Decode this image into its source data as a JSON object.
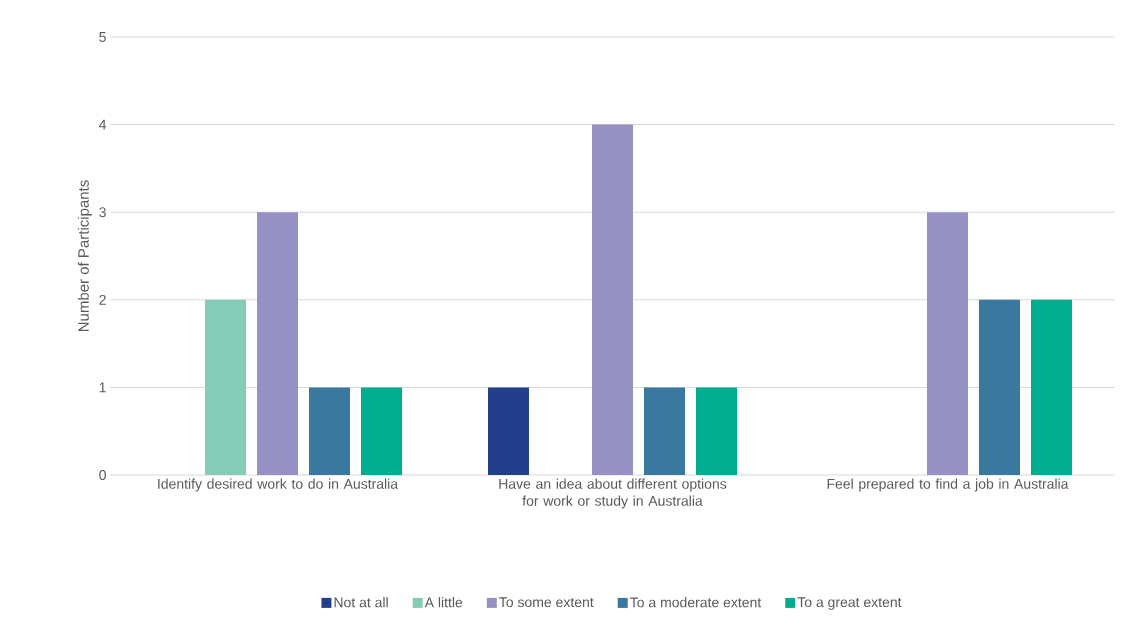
{
  "chart_data": {
    "type": "bar",
    "ylabel": "Number of Participants",
    "categories": [
      "Identify desired work to do in Australia",
      "Have an idea about different options for work or study in Australia",
      "Feel prepared to find a job in Australia"
    ],
    "series": [
      {
        "name": "Not at all",
        "color": "#233f8c",
        "values": [
          0,
          1,
          0
        ]
      },
      {
        "name": "A little",
        "color": "#85ccb8",
        "values": [
          2,
          0,
          0
        ]
      },
      {
        "name": "To some extent",
        "color": "#9591c2",
        "values": [
          3,
          4,
          3
        ]
      },
      {
        "name": "To a moderate extent",
        "color": "#3a78a0",
        "values": [
          1,
          1,
          2
        ]
      },
      {
        "name": "To a great extent",
        "color": "#00ad8e",
        "values": [
          1,
          1,
          2
        ]
      }
    ],
    "ylim": [
      0,
      5
    ],
    "yticks": [
      0,
      1,
      2,
      3,
      4,
      5
    ],
    "grid": "y",
    "legend": "bottom"
  }
}
